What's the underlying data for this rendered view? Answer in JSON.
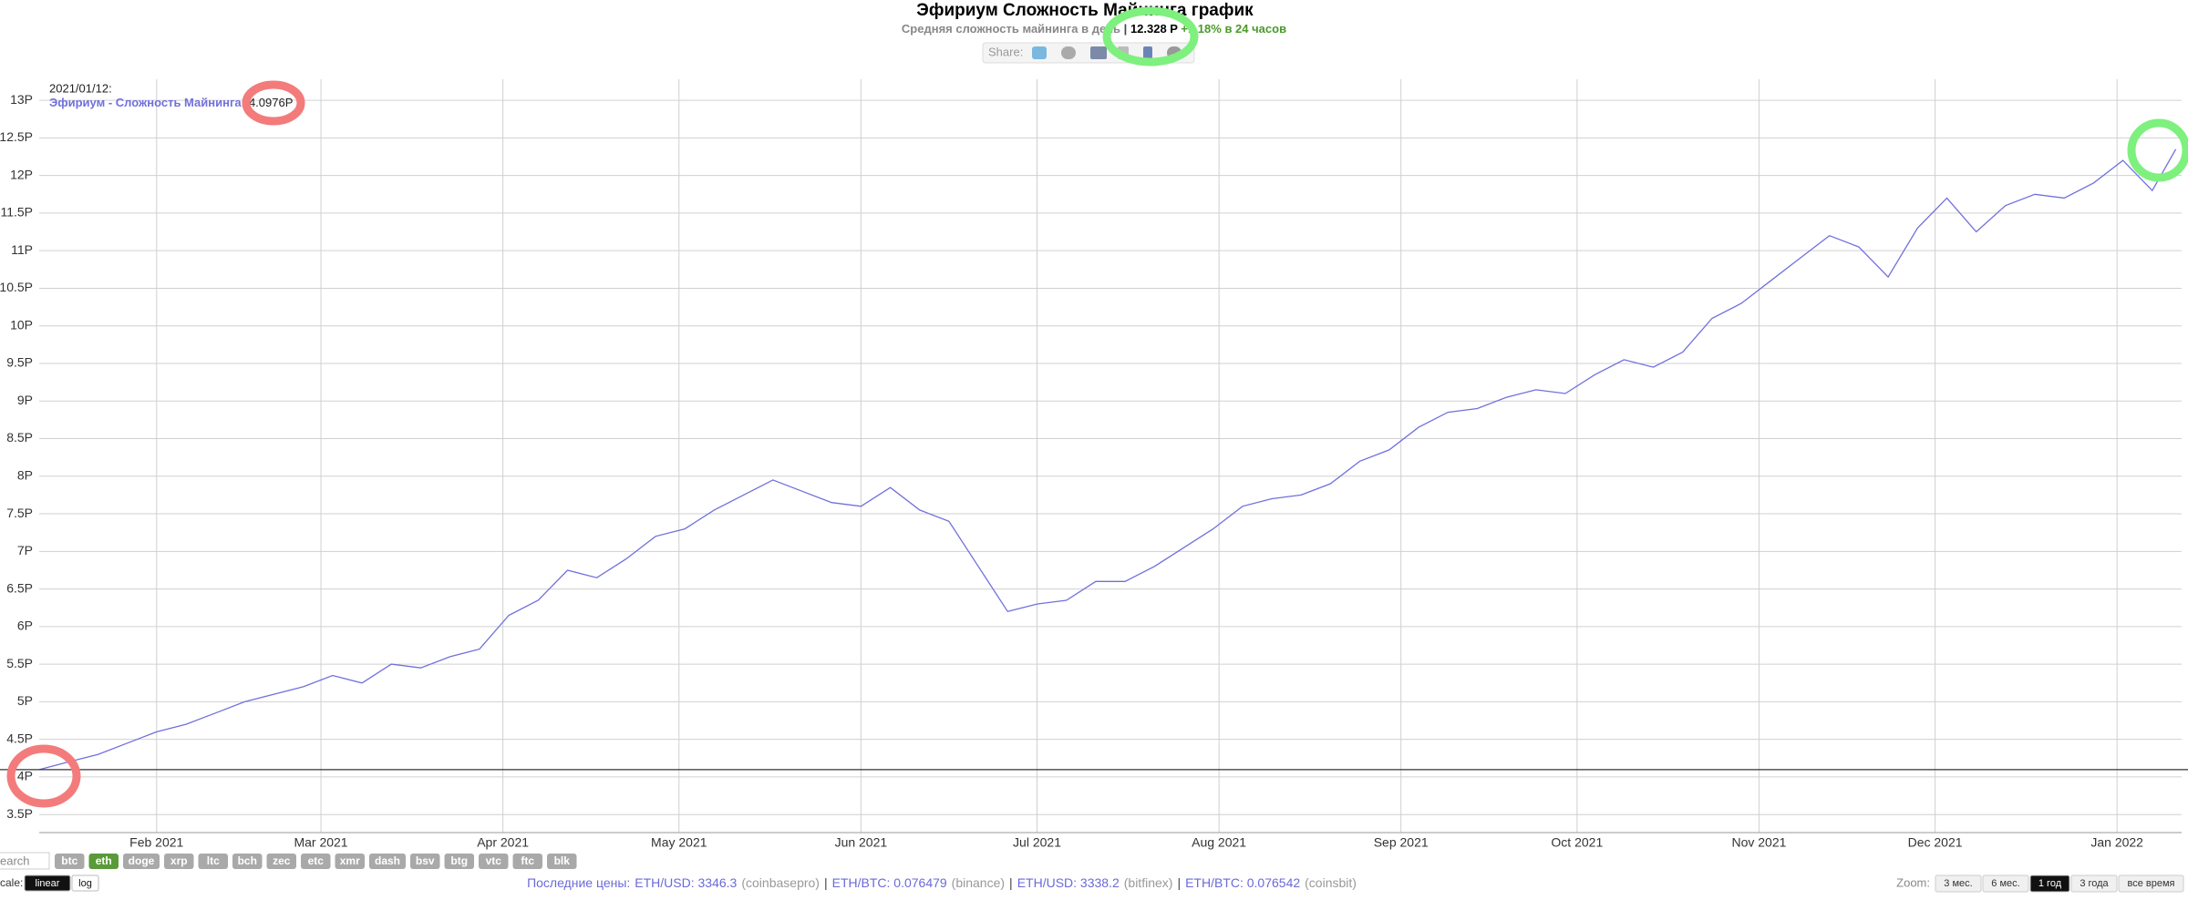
{
  "header": {
    "title": "Эфириум Сложность Майнинга график",
    "subtitle": {
      "text": "Средняя сложность майнинга в день",
      "separator": "|",
      "value": "12.328 P",
      "change": "+1.18% в 24 часов"
    },
    "share": "Share:"
  },
  "chart_data": {
    "type": "line",
    "color": "#7070dd",
    "grid": true,
    "x": [
      "2021/01/12",
      "2021/01/17",
      "2021/01/22",
      "2021/01/27",
      "2021/02/01",
      "2021/02/06",
      "2021/02/11",
      "2021/02/16",
      "2021/02/21",
      "2021/02/26",
      "2021/03/03",
      "2021/03/08",
      "2021/03/13",
      "2021/03/18",
      "2021/03/23",
      "2021/03/28",
      "2021/04/02",
      "2021/04/07",
      "2021/04/12",
      "2021/04/17",
      "2021/04/22",
      "2021/04/27",
      "2021/05/02",
      "2021/05/07",
      "2021/05/12",
      "2021/05/17",
      "2021/05/22",
      "2021/05/27",
      "2021/06/01",
      "2021/06/06",
      "2021/06/11",
      "2021/06/16",
      "2021/06/21",
      "2021/06/26",
      "2021/07/01",
      "2021/07/06",
      "2021/07/11",
      "2021/07/16",
      "2021/07/21",
      "2021/07/26",
      "2021/07/31",
      "2021/08/05",
      "2021/08/10",
      "2021/08/15",
      "2021/08/20",
      "2021/08/25",
      "2021/08/30",
      "2021/09/04",
      "2021/09/09",
      "2021/09/14",
      "2021/09/19",
      "2021/09/24",
      "2021/09/29",
      "2021/10/04",
      "2021/10/09",
      "2021/10/14",
      "2021/10/19",
      "2021/10/24",
      "2021/10/29",
      "2021/11/03",
      "2021/11/08",
      "2021/11/13",
      "2021/11/18",
      "2021/11/23",
      "2021/11/28",
      "2021/12/03",
      "2021/12/08",
      "2021/12/13",
      "2021/12/18",
      "2021/12/23",
      "2021/12/28",
      "2022/01/02",
      "2022/01/07",
      "2022/01/11"
    ],
    "values": [
      4.0976,
      4.2,
      4.3,
      4.45,
      4.6,
      4.7,
      4.85,
      5.0,
      5.1,
      5.2,
      5.35,
      5.25,
      5.5,
      5.45,
      5.6,
      5.7,
      6.15,
      6.35,
      6.75,
      6.65,
      6.9,
      7.2,
      7.3,
      7.55,
      7.75,
      7.95,
      7.8,
      7.65,
      7.6,
      7.85,
      7.55,
      7.4,
      6.8,
      6.2,
      6.3,
      6.35,
      6.6,
      6.6,
      6.8,
      7.05,
      7.3,
      7.6,
      7.7,
      7.75,
      7.9,
      8.2,
      8.35,
      8.65,
      8.85,
      8.9,
      9.05,
      9.15,
      9.1,
      9.35,
      9.55,
      9.45,
      9.65,
      10.1,
      10.3,
      10.6,
      10.9,
      11.2,
      11.05,
      10.65,
      11.3,
      11.7,
      11.25,
      11.6,
      11.75,
      11.7,
      11.9,
      12.2,
      11.8,
      12.35
    ],
    "xlim": [
      "2021/01/12",
      "2022/01/12"
    ],
    "xticks": [
      {
        "value": "2021/02/01",
        "label": "Feb 2021"
      },
      {
        "value": "2021/03/01",
        "label": "Mar 2021"
      },
      {
        "value": "2021/04/01",
        "label": "Apr 2021"
      },
      {
        "value": "2021/05/01",
        "label": "May 2021"
      },
      {
        "value": "2021/06/01",
        "label": "Jun 2021"
      },
      {
        "value": "2021/07/01",
        "label": "Jul 2021"
      },
      {
        "value": "2021/08/01",
        "label": "Aug 2021"
      },
      {
        "value": "2021/09/01",
        "label": "Sep 2021"
      },
      {
        "value": "2021/10/01",
        "label": "Oct 2021"
      },
      {
        "value": "2021/11/01",
        "label": "Nov 2021"
      },
      {
        "value": "2021/12/01",
        "label": "Dec 2021"
      },
      {
        "value": "2022/01/01",
        "label": "Jan 2022"
      }
    ],
    "ylim": [
      3.26,
      13.28
    ],
    "yticks": [
      {
        "value": 3.5,
        "label": "3.5P"
      },
      {
        "value": 4,
        "label": "4P"
      },
      {
        "value": 4.5,
        "label": "4.5P"
      },
      {
        "value": 5,
        "label": "5P"
      },
      {
        "value": 5.5,
        "label": "5.5P"
      },
      {
        "value": 6,
        "label": "6P"
      },
      {
        "value": 6.5,
        "label": "6.5P"
      },
      {
        "value": 7,
        "label": "7P"
      },
      {
        "value": 7.5,
        "label": "7.5P"
      },
      {
        "value": 8,
        "label": "8P"
      },
      {
        "value": 8.5,
        "label": "8.5P"
      },
      {
        "value": 9,
        "label": "9P"
      },
      {
        "value": 9.5,
        "label": "9.5P"
      },
      {
        "value": 10,
        "label": "10P"
      },
      {
        "value": 10.5,
        "label": "10.5P"
      },
      {
        "value": 11,
        "label": "11P"
      },
      {
        "value": 11.5,
        "label": "11.5P"
      },
      {
        "value": 12,
        "label": "12P"
      },
      {
        "value": 12.5,
        "label": "12.5P"
      },
      {
        "value": 13,
        "label": "13P"
      }
    ],
    "tooltip": {
      "date": "2021/01/12:",
      "label": "Эфириум - Сложность Майнинга:",
      "value": 4.0976,
      "value_label": "4.0976P"
    }
  },
  "footer": {
    "search": "earch",
    "coins": [
      "btc",
      "eth",
      "doge",
      "xrp",
      "ltc",
      "bch",
      "zec",
      "etc",
      "xmr",
      "dash",
      "bsv",
      "btg",
      "vtc",
      "ftc",
      "blk"
    ],
    "coin_active": 1,
    "scale_label": "cale:",
    "scales": [
      "linear",
      "log"
    ],
    "scale_active": 0,
    "prices_label": "Последние цены:",
    "separator": "|",
    "prices": [
      {
        "pair": "ETH/USD: 3346.3",
        "source": "(coinbasepro)"
      },
      {
        "pair": "ETH/BTC: 0.076479",
        "source": "(binance)"
      },
      {
        "pair": "ETH/USD: 3338.2",
        "source": "(bitfinex)"
      },
      {
        "pair": "ETH/BTC: 0.076542",
        "source": "(coinsbit)"
      }
    ],
    "zoom_label": "Zoom:",
    "zooms": [
      "3 мес.",
      "6 мес.",
      "1 год",
      "3 года",
      "все время"
    ],
    "zoom_active": 2
  }
}
